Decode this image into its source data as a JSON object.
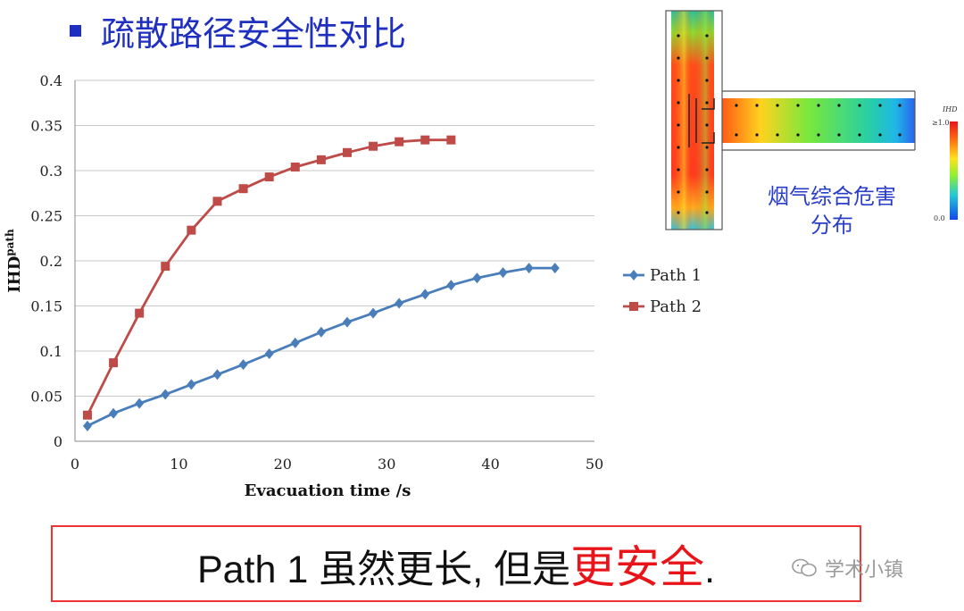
{
  "slide": {
    "title": "疏散路径安全性对比"
  },
  "chart_data": {
    "type": "line",
    "xlabel": "Evacuation time /s",
    "ylabel": "IHD",
    "ylabel_sub": "path",
    "xlim": [
      0,
      50
    ],
    "ylim": [
      0,
      0.4
    ],
    "xticks": [
      "0",
      "10",
      "20",
      "30",
      "40",
      "50"
    ],
    "yticks": [
      "0",
      "0.05",
      "0.1",
      "0.15",
      "0.2",
      "0.25",
      "0.3",
      "0.35",
      "0.4"
    ],
    "grid": "horizontal",
    "legend_position": "right",
    "series": [
      {
        "name": "Path 1",
        "marker": "diamond",
        "color": "#4a7ebb",
        "x": [
          1.2,
          3.7,
          6.2,
          8.7,
          11.2,
          13.7,
          16.2,
          18.7,
          21.2,
          23.7,
          26.2,
          28.7,
          31.2,
          33.7,
          36.2,
          38.7,
          41.2,
          43.7,
          46.2
        ],
        "y": [
          0.017,
          0.031,
          0.042,
          0.052,
          0.063,
          0.074,
          0.085,
          0.097,
          0.109,
          0.121,
          0.132,
          0.142,
          0.153,
          0.163,
          0.173,
          0.181,
          0.187,
          0.192,
          0.192
        ]
      },
      {
        "name": "Path 2",
        "marker": "square",
        "color": "#be4b48",
        "x": [
          1.2,
          3.7,
          6.2,
          8.7,
          11.2,
          13.7,
          16.2,
          18.7,
          21.2,
          23.7,
          26.2,
          28.7,
          31.2,
          33.7,
          36.2
        ],
        "y": [
          0.029,
          0.087,
          0.142,
          0.194,
          0.234,
          0.266,
          0.28,
          0.293,
          0.304,
          0.312,
          0.32,
          0.327,
          0.332,
          0.334,
          0.334
        ]
      }
    ]
  },
  "heatmap": {
    "caption_line1": "烟气综合危害",
    "caption_line2": "分布",
    "colorbar_title": "IHD",
    "colorbar_max": "≥1.0",
    "colorbar_min": "0.0"
  },
  "conclusion": {
    "prefix": "Path 1 虽然更长, 但是",
    "emphasis": "更安全",
    "suffix": "."
  },
  "watermark": {
    "text": "学术小镇"
  }
}
